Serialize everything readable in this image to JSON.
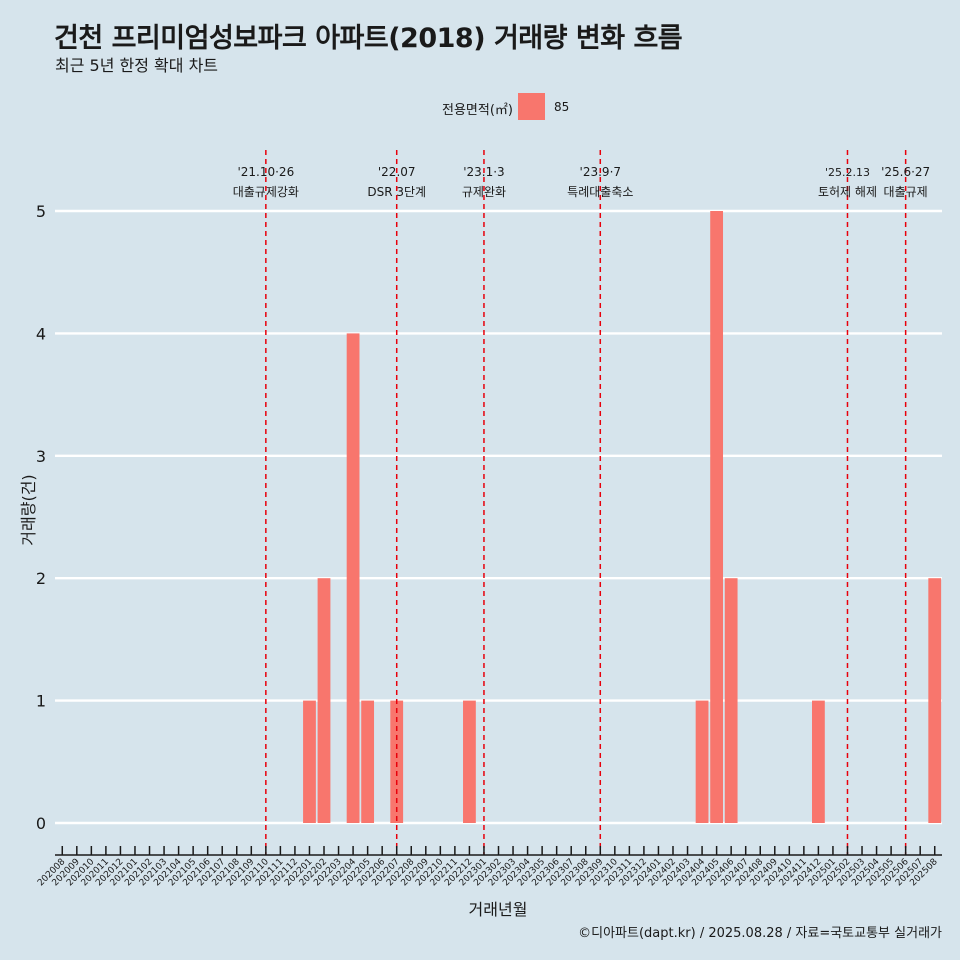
{
  "title": "건천 프리미엄성보파크 아파트(2018) 거래량 변화 흐름",
  "subtitle": "최근 5년 한정 확대 차트",
  "legend": {
    "title": "전용면적(㎡)",
    "label": "85",
    "color": "#f8766d"
  },
  "caption": "©디아파트(dapt.kr) / 2025.08.28 / 자료=국토교통부 실거래가",
  "chart_data": {
    "type": "bar",
    "xlabel": "거래년월",
    "ylabel": "거래량(건)",
    "ylim": [
      0,
      5
    ],
    "yticks": [
      0,
      1,
      2,
      3,
      4,
      5
    ],
    "grid": true,
    "legend_position": "top",
    "categories": [
      "202008",
      "202009",
      "202010",
      "202011",
      "202012",
      "202101",
      "202102",
      "202103",
      "202104",
      "202105",
      "202106",
      "202107",
      "202108",
      "202109",
      "202110",
      "202111",
      "202112",
      "202201",
      "202202",
      "202203",
      "202204",
      "202205",
      "202206",
      "202207",
      "202208",
      "202209",
      "202210",
      "202211",
      "202212",
      "202301",
      "202302",
      "202303",
      "202304",
      "202305",
      "202306",
      "202307",
      "202308",
      "202309",
      "202310",
      "202311",
      "202312",
      "202401",
      "202402",
      "202403",
      "202404",
      "202405",
      "202406",
      "202407",
      "202408",
      "202409",
      "202410",
      "202411",
      "202412",
      "202501",
      "202502",
      "202503",
      "202504",
      "202505",
      "202506",
      "202507",
      "202508"
    ],
    "series": [
      {
        "name": "85",
        "color": "#f8766d",
        "values": [
          0,
          0,
          0,
          0,
          0,
          0,
          0,
          0,
          0,
          0,
          0,
          0,
          0,
          0,
          0,
          0,
          0,
          1,
          2,
          0,
          4,
          1,
          0,
          1,
          0,
          0,
          0,
          0,
          1,
          0,
          0,
          0,
          0,
          0,
          0,
          0,
          0,
          0,
          0,
          0,
          0,
          0,
          0,
          0,
          1,
          5,
          2,
          0,
          0,
          0,
          0,
          0,
          1,
          0,
          0,
          0,
          0,
          0,
          0,
          0,
          2
        ]
      }
    ],
    "events": [
      {
        "x": "202110",
        "date": "'21.10·26",
        "label": "대출규제강화"
      },
      {
        "x": "202207",
        "date": "'22.07",
        "label": "DSR 3단계"
      },
      {
        "x": "202301",
        "date": "'23.1·3",
        "label": "규제완화"
      },
      {
        "x": "202309",
        "date": "'23.9·7",
        "label": "특례대출축소"
      },
      {
        "x": "202502",
        "date": "'25.2.13",
        "label": "토허제 해제"
      },
      {
        "x": "202506",
        "date": "'25.6·27",
        "label": "대출규제"
      }
    ]
  }
}
